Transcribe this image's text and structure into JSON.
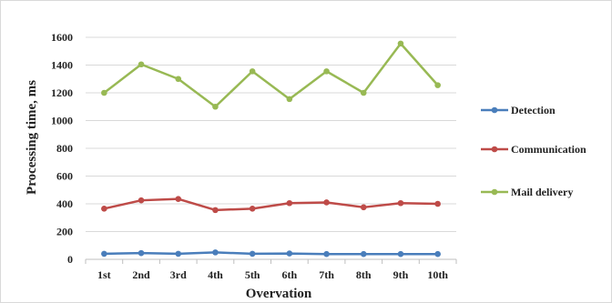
{
  "chart_data": {
    "type": "line",
    "title": "",
    "xlabel": "Overvation",
    "ylabel": "Processing time, ms",
    "categories": [
      "1st",
      "2nd",
      "3rd",
      "4th",
      "5th",
      "6th",
      "7th",
      "8th",
      "9th",
      "10th"
    ],
    "ylim": [
      0,
      1600
    ],
    "yticks": [
      0,
      200,
      400,
      600,
      800,
      1000,
      1200,
      1400,
      1600
    ],
    "grid": "horizontal",
    "legend_position": "right",
    "series": [
      {
        "name": "Detection",
        "color": "#4a7ebb",
        "values": [
          40,
          45,
          40,
          50,
          40,
          42,
          38,
          38,
          38,
          38
        ]
      },
      {
        "name": "Communication",
        "color": "#be4b48",
        "values": [
          365,
          425,
          435,
          355,
          365,
          405,
          410,
          375,
          405,
          400
        ]
      },
      {
        "name": "Mail delivery",
        "color": "#98b954",
        "values": [
          1200,
          1405,
          1300,
          1100,
          1355,
          1155,
          1355,
          1200,
          1555,
          1255
        ]
      }
    ]
  }
}
